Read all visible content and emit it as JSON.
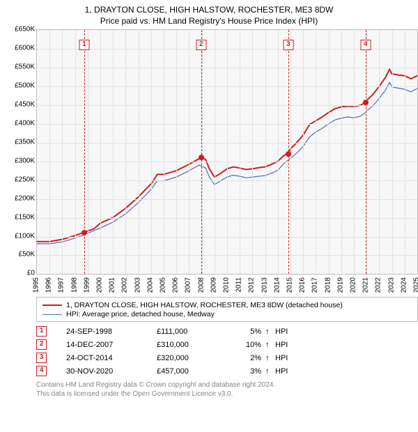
{
  "title_line1": "1, DRAYTON CLOSE, HIGH HALSTOW, ROCHESTER, ME3 8DW",
  "title_line2": "Price paid vs. HM Land Registry's House Price Index (HPI)",
  "currency_prefix": "£",
  "chart": {
    "type": "line",
    "background_color": "#f7f7f7",
    "border_color": "#bdbdbd",
    "grid_color": "#e2e2e2",
    "x": {
      "min_year": 1995,
      "max_year": 2025,
      "tick_step": 1
    },
    "y": {
      "min": 0,
      "max": 650000,
      "ticks": [
        0,
        50000,
        100000,
        150000,
        200000,
        250000,
        300000,
        350000,
        400000,
        450000,
        500000,
        550000,
        600000,
        650000
      ]
    },
    "series": [
      {
        "id": "price_paid",
        "label": "1, DRAYTON CLOSE, HIGH HALSTOW, ROCHESTER, ME3 8DW (detached house)",
        "color": "#d01c21",
        "width": 2,
        "points": [
          [
            1995.0,
            86000
          ],
          [
            1996.0,
            86000
          ],
          [
            1997.0,
            92000
          ],
          [
            1998.0,
            102000
          ],
          [
            1998.73,
            111000
          ],
          [
            1999.5,
            120000
          ],
          [
            2000.0,
            135000
          ],
          [
            2001.0,
            150000
          ],
          [
            2002.0,
            175000
          ],
          [
            2003.0,
            205000
          ],
          [
            2004.0,
            240000
          ],
          [
            2004.5,
            265000
          ],
          [
            2005.0,
            265000
          ],
          [
            2006.0,
            275000
          ],
          [
            2007.0,
            292000
          ],
          [
            2007.95,
            310000
          ],
          [
            2008.3,
            305000
          ],
          [
            2008.6,
            280000
          ],
          [
            2009.0,
            258000
          ],
          [
            2009.5,
            268000
          ],
          [
            2010.0,
            280000
          ],
          [
            2010.5,
            285000
          ],
          [
            2011.0,
            282000
          ],
          [
            2011.5,
            278000
          ],
          [
            2012.0,
            280000
          ],
          [
            2012.5,
            283000
          ],
          [
            2013.0,
            285000
          ],
          [
            2013.5,
            292000
          ],
          [
            2014.0,
            300000
          ],
          [
            2014.5,
            316000
          ],
          [
            2014.82,
            320000
          ],
          [
            2015.0,
            333000
          ],
          [
            2015.5,
            350000
          ],
          [
            2016.0,
            370000
          ],
          [
            2016.5,
            398000
          ],
          [
            2017.0,
            408000
          ],
          [
            2017.5,
            418000
          ],
          [
            2018.0,
            430000
          ],
          [
            2018.5,
            440000
          ],
          [
            2019.0,
            445000
          ],
          [
            2019.5,
            447000
          ],
          [
            2020.0,
            446000
          ],
          [
            2020.5,
            449000
          ],
          [
            2020.92,
            457000
          ],
          [
            2021.0,
            462000
          ],
          [
            2021.5,
            478000
          ],
          [
            2022.0,
            500000
          ],
          [
            2022.5,
            524000
          ],
          [
            2022.8,
            545000
          ],
          [
            2023.0,
            533000
          ],
          [
            2023.5,
            530000
          ],
          [
            2024.0,
            528000
          ],
          [
            2024.5,
            520000
          ],
          [
            2025.0,
            528000
          ]
        ]
      },
      {
        "id": "hpi_medway",
        "label": "HPI: Average price, detached house, Medway",
        "color": "#4a6fb0",
        "width": 1.2,
        "points": [
          [
            1995.0,
            80000
          ],
          [
            1996.0,
            80000
          ],
          [
            1997.0,
            85000
          ],
          [
            1998.0,
            95000
          ],
          [
            1999.0,
            108000
          ],
          [
            2000.0,
            122000
          ],
          [
            2001.0,
            138000
          ],
          [
            2002.0,
            160000
          ],
          [
            2003.0,
            190000
          ],
          [
            2004.0,
            225000
          ],
          [
            2004.5,
            248000
          ],
          [
            2005.0,
            248000
          ],
          [
            2006.0,
            258000
          ],
          [
            2007.0,
            275000
          ],
          [
            2007.8,
            290000
          ],
          [
            2008.3,
            282000
          ],
          [
            2008.6,
            258000
          ],
          [
            2009.0,
            238000
          ],
          [
            2009.5,
            248000
          ],
          [
            2010.0,
            258000
          ],
          [
            2010.5,
            263000
          ],
          [
            2011.0,
            260000
          ],
          [
            2011.5,
            256000
          ],
          [
            2012.0,
            258000
          ],
          [
            2012.5,
            260000
          ],
          [
            2013.0,
            262000
          ],
          [
            2013.5,
            268000
          ],
          [
            2014.0,
            276000
          ],
          [
            2014.5,
            295000
          ],
          [
            2015.0,
            308000
          ],
          [
            2015.5,
            322000
          ],
          [
            2016.0,
            340000
          ],
          [
            2016.5,
            365000
          ],
          [
            2017.0,
            378000
          ],
          [
            2017.5,
            388000
          ],
          [
            2018.0,
            400000
          ],
          [
            2018.5,
            410000
          ],
          [
            2019.0,
            415000
          ],
          [
            2019.5,
            418000
          ],
          [
            2020.0,
            416000
          ],
          [
            2020.5,
            420000
          ],
          [
            2020.92,
            430000
          ],
          [
            2021.0,
            434000
          ],
          [
            2021.5,
            448000
          ],
          [
            2022.0,
            468000
          ],
          [
            2022.5,
            490000
          ],
          [
            2022.8,
            510000
          ],
          [
            2023.0,
            498000
          ],
          [
            2023.5,
            495000
          ],
          [
            2024.0,
            492000
          ],
          [
            2024.5,
            485000
          ],
          [
            2025.0,
            494000
          ]
        ]
      }
    ],
    "events": [
      {
        "n": "1",
        "year": 1998.73,
        "value": 111000
      },
      {
        "n": "2",
        "year": 2007.95,
        "value": 310000
      },
      {
        "n": "3",
        "year": 2014.82,
        "value": 320000
      },
      {
        "n": "4",
        "year": 2020.92,
        "value": 457000
      }
    ]
  },
  "legend": [
    {
      "bind": "chart.series.0.label",
      "color": "#d01c21",
      "width": 2
    },
    {
      "bind": "chart.series.1.label",
      "color": "#4a6fb0",
      "width": 1.2
    }
  ],
  "table": {
    "hpi_label": "HPI",
    "arrow": "↑",
    "rows": [
      {
        "n": "1",
        "date": "24-SEP-1998",
        "price": "£111,000",
        "pct": "5%"
      },
      {
        "n": "2",
        "date": "14-DEC-2007",
        "price": "£310,000",
        "pct": "10%"
      },
      {
        "n": "3",
        "date": "24-OCT-2014",
        "price": "£320,000",
        "pct": "2%"
      },
      {
        "n": "4",
        "date": "30-NOV-2020",
        "price": "£457,000",
        "pct": "3%"
      }
    ]
  },
  "footer_line1": "Contains HM Land Registry data © Crown copyright and database right 2024.",
  "footer_line2": "This data is licensed under the Open Government Licence v3.0."
}
